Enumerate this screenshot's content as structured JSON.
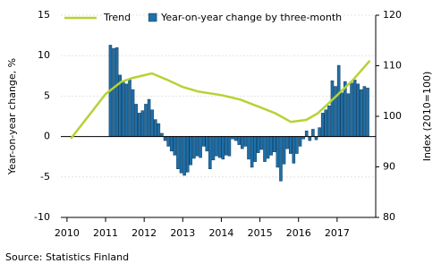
{
  "chart_data": {
    "type": "combo",
    "ylabel": "Year-on-year change, %",
    "y2label": "Index (2010=100)",
    "source": "Source: Statistics Finland",
    "xlim": [
      2009.84,
      2018.0
    ],
    "xticks": [
      2010,
      2011,
      2012,
      2013,
      2014,
      2015,
      2016,
      2017
    ],
    "ylim": [
      -10,
      15
    ],
    "yticks": [
      -10,
      -5,
      0,
      5,
      10,
      15
    ],
    "y2lim": [
      80,
      120
    ],
    "y2ticks": [
      80,
      90,
      100,
      110,
      120
    ],
    "grid": true,
    "legend": "top",
    "series": [
      {
        "name": "Trend",
        "type": "line",
        "axis": "y2",
        "color": "#b5d334",
        "x": [
          2010.1,
          2010.5,
          2011.0,
          2011.4,
          2011.7,
          2012.2,
          2012.6,
          2013.0,
          2013.4,
          2014.0,
          2014.5,
          2015.0,
          2015.4,
          2015.8,
          2016.2,
          2016.5,
          2016.8,
          2017.1,
          2017.4,
          2017.85
        ],
        "values": [
          95.6,
          99.5,
          104.4,
          106.8,
          107.6,
          108.5,
          107.2,
          105.8,
          104.9,
          104.2,
          103.3,
          101.8,
          100.6,
          98.9,
          99.3,
          100.6,
          102.7,
          104.9,
          107.1,
          111.0
        ]
      },
      {
        "name": "Year-on-year change by three-month",
        "type": "bar",
        "color": "#1f6fa8",
        "x": [
          2011.125,
          2011.208,
          2011.292,
          2011.375,
          2011.458,
          2011.542,
          2011.625,
          2011.708,
          2011.792,
          2011.875,
          2011.958,
          2012.042,
          2012.125,
          2012.208,
          2012.292,
          2012.375,
          2012.458,
          2012.542,
          2012.625,
          2012.708,
          2012.792,
          2012.875,
          2012.958,
          2013.042,
          2013.125,
          2013.208,
          2013.292,
          2013.375,
          2013.458,
          2013.542,
          2013.625,
          2013.708,
          2013.792,
          2013.875,
          2013.958,
          2014.042,
          2014.125,
          2014.208,
          2014.292,
          2014.375,
          2014.458,
          2014.542,
          2014.625,
          2014.708,
          2014.792,
          2014.875,
          2014.958,
          2015.042,
          2015.125,
          2015.208,
          2015.292,
          2015.375,
          2015.458,
          2015.542,
          2015.625,
          2015.708,
          2015.792,
          2015.875,
          2015.958,
          2016.042,
          2016.125,
          2016.208,
          2016.292,
          2016.375,
          2016.458,
          2016.542,
          2016.625,
          2016.708,
          2016.792,
          2016.875,
          2016.958,
          2017.042,
          2017.125,
          2017.208,
          2017.292,
          2017.375,
          2017.458,
          2017.542,
          2017.625,
          2017.708,
          2017.792
        ],
        "values": [
          11.3,
          10.9,
          11.0,
          7.6,
          6.8,
          6.5,
          7.1,
          5.8,
          4.0,
          2.9,
          3.2,
          4.0,
          4.6,
          3.3,
          2.1,
          1.6,
          0.4,
          -0.5,
          -1.2,
          -1.8,
          -2.3,
          -4.0,
          -4.5,
          -4.8,
          -4.4,
          -3.5,
          -2.7,
          -2.4,
          -2.6,
          -1.2,
          -1.8,
          -4.0,
          -2.9,
          -2.4,
          -2.6,
          -2.8,
          -2.3,
          -2.4,
          -0.3,
          -0.5,
          -1.0,
          -1.5,
          -1.2,
          -2.8,
          -3.8,
          -3.1,
          -2.0,
          -1.6,
          -3.1,
          -2.7,
          -2.3,
          -1.9,
          -3.8,
          -5.5,
          -3.4,
          -1.5,
          -2.1,
          -3.3,
          -2.1,
          -1.2,
          -0.3,
          0.7,
          -0.5,
          0.9,
          -0.4,
          1.1,
          2.9,
          3.3,
          3.8,
          6.9,
          6.2,
          8.8,
          5.4,
          6.8,
          5.3,
          6.6,
          7.0,
          6.5,
          5.8,
          6.2,
          6.0
        ]
      }
    ]
  }
}
